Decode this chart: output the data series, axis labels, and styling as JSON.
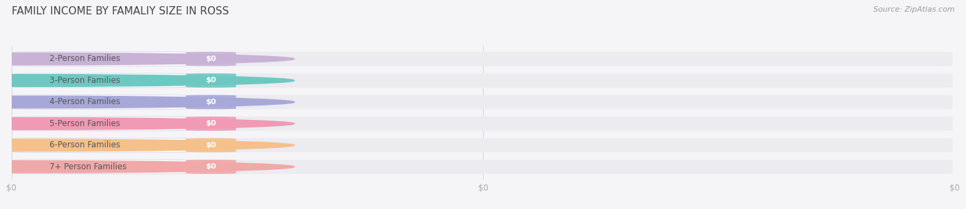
{
  "title": "FAMILY INCOME BY FAMALIY SIZE IN ROSS",
  "source": "Source: ZipAtlas.com",
  "categories": [
    "2-Person Families",
    "3-Person Families",
    "4-Person Families",
    "5-Person Families",
    "6-Person Families",
    "7+ Person Families"
  ],
  "values": [
    0,
    0,
    0,
    0,
    0,
    0
  ],
  "bar_colors": [
    "#c8b2d6",
    "#6ec8c2",
    "#a8a8d8",
    "#f09ab5",
    "#f5c08a",
    "#f0a8a8"
  ],
  "background_color": "#f5f5f8",
  "bar_bg_color": "#ebebf0",
  "title_color": "#444444",
  "source_color": "#999999",
  "label_text_color": "#555555",
  "value_text_color": "#ffffff",
  "tick_label_color": "#aaaaaa",
  "title_fontsize": 11,
  "source_fontsize": 8,
  "label_fontsize": 8.5,
  "value_fontsize": 8,
  "tick_fontsize": 8.5,
  "xtick_labels": [
    "$0",
    "$0",
    "$0"
  ],
  "xtick_positions": [
    0.0,
    0.5,
    1.0
  ]
}
